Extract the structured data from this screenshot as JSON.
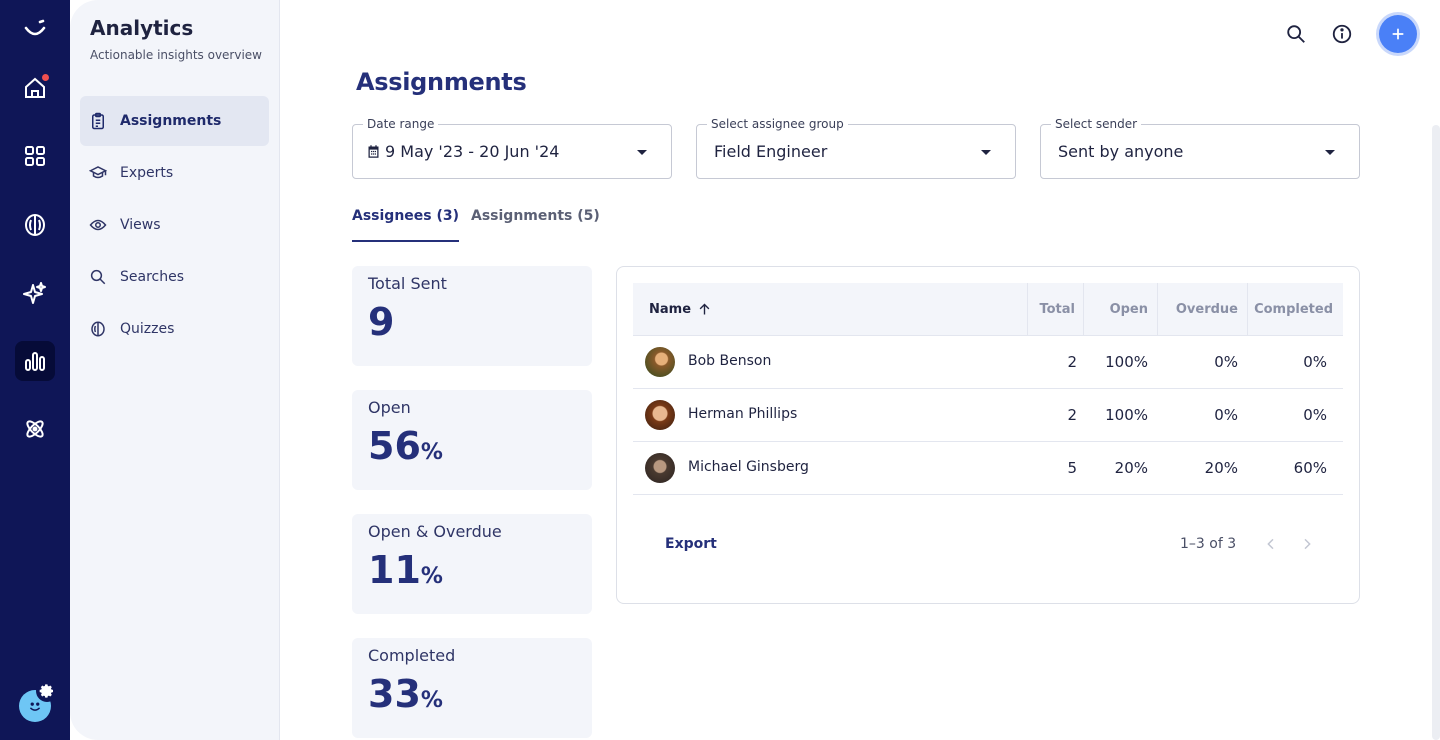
{
  "rail": {
    "items": [
      {
        "icon": "home-icon"
      },
      {
        "icon": "apps-grid-icon"
      },
      {
        "icon": "brain-icon"
      },
      {
        "icon": "sparkles-icon"
      },
      {
        "icon": "analytics-chart-icon"
      },
      {
        "icon": "atom-icon"
      }
    ],
    "active": "analytics-chart-icon",
    "home_has_notification": true
  },
  "panel": {
    "title": "Analytics",
    "subtitle": "Actionable insights overview",
    "items": [
      {
        "label": "Assignments",
        "icon": "clipboard-icon",
        "active": true
      },
      {
        "label": "Experts",
        "icon": "graduation-cap-icon",
        "active": false
      },
      {
        "label": "Views",
        "icon": "eye-icon",
        "active": false
      },
      {
        "label": "Searches",
        "icon": "search-icon",
        "active": false
      },
      {
        "label": "Quizzes",
        "icon": "quiz-brain-icon",
        "active": false
      }
    ]
  },
  "page": {
    "title": "Assignments"
  },
  "filters": {
    "date_range": {
      "label": "Date range",
      "value": "9 May '23 - 20 Jun '24"
    },
    "assignee_group": {
      "label": "Select assignee group",
      "value": "Field Engineer"
    },
    "sender": {
      "label": "Select sender",
      "value": "Sent by anyone"
    }
  },
  "tabs": [
    {
      "label": "Assignees (3)",
      "active": true
    },
    {
      "label": "Assignments (5)",
      "active": false
    }
  ],
  "stats": [
    {
      "label": "Total Sent",
      "value": "9",
      "unit": ""
    },
    {
      "label": "Open",
      "value": "56",
      "unit": "%"
    },
    {
      "label": "Open & Overdue",
      "value": "11",
      "unit": "%"
    },
    {
      "label": "Completed",
      "value": "33",
      "unit": "%"
    }
  ],
  "table": {
    "columns": [
      "Name",
      "Total",
      "Open",
      "Overdue",
      "Completed"
    ],
    "sort": {
      "column": "Name",
      "direction": "ascending"
    },
    "rows": [
      {
        "name": "Bob Benson",
        "total": "2",
        "open": "100%",
        "overdue": "0%",
        "completed": "0%"
      },
      {
        "name": "Herman Phillips",
        "total": "2",
        "open": "100%",
        "overdue": "0%",
        "completed": "0%"
      },
      {
        "name": "Michael Ginsberg",
        "total": "5",
        "open": "20%",
        "overdue": "20%",
        "completed": "60%"
      }
    ],
    "export_label": "Export",
    "pagination": "1–3 of 3"
  },
  "colors": {
    "rail_bg": "#0f1657",
    "accent": "#25307a",
    "add_button": "#4a80f7",
    "notification": "#ef4f4f"
  }
}
